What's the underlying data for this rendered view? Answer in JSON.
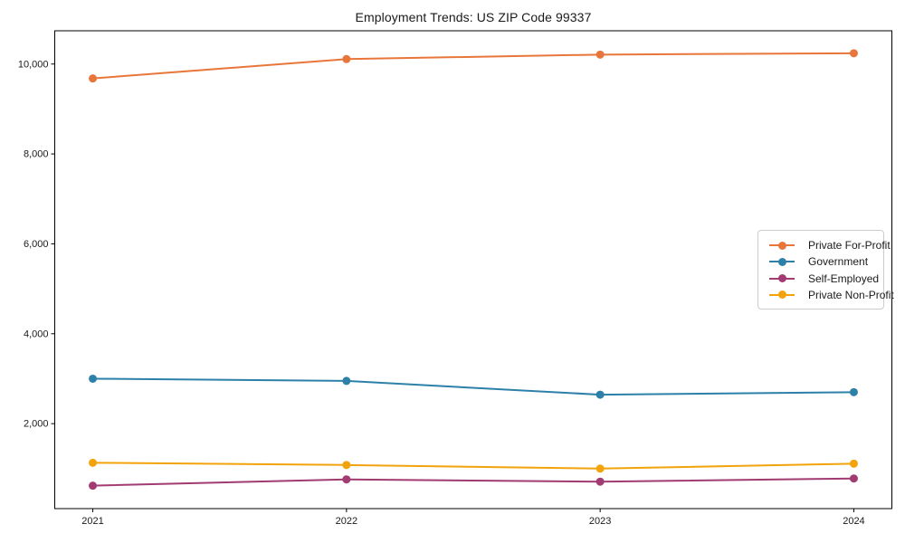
{
  "figure": {
    "title": "Employment Trends: US ZIP Code 99337"
  },
  "chart_data": {
    "type": "line",
    "title": "Employment Trends: US ZIP Code 99337",
    "x": [
      2021,
      2022,
      2023,
      2024
    ],
    "xtick_labels": [
      "2021",
      "2022",
      "2023",
      "2024"
    ],
    "yticks": [
      2000,
      4000,
      6000,
      8000,
      10000
    ],
    "ytick_labels": [
      "2,000",
      "4,000",
      "6,000",
      "8,000",
      "10,000"
    ],
    "xlim": [
      2020.85,
      2024.15
    ],
    "ylim": [
      110,
      10740
    ],
    "xlabel": "",
    "ylabel": "",
    "grid": false,
    "legend_position": "center-right",
    "marker": "circle",
    "series": [
      {
        "name": "Private For-Profit",
        "color": "#e8763a",
        "values": [
          9680,
          10110,
          10210,
          10240
        ]
      },
      {
        "name": "Government",
        "color": "#2d81a8",
        "values": [
          3000,
          2950,
          2645,
          2700
        ]
      },
      {
        "name": "Self-Employed",
        "color": "#a23b72",
        "values": [
          620,
          760,
          710,
          780
        ]
      },
      {
        "name": "Private Non-Profit",
        "color": "#f2a30b",
        "values": [
          1130,
          1080,
          1000,
          1110
        ]
      }
    ]
  }
}
